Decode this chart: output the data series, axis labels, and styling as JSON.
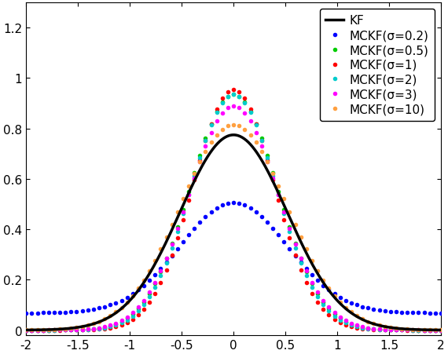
{
  "xlim": [
    -2,
    2
  ],
  "ylim": [
    -0.02,
    1.3
  ],
  "yticks": [
    0,
    0.2,
    0.4,
    0.6,
    0.8,
    1.0,
    1.2
  ],
  "xticks": [
    -2,
    -1.5,
    -1,
    -0.5,
    0,
    0.5,
    1,
    1.5,
    2
  ],
  "kf_color": "#000000",
  "kf_lw": 2.5,
  "kf_sigma": 0.515,
  "series": [
    {
      "sigma": 0.2,
      "color": "#0000FF",
      "label": "MCKF(σ=0.2)",
      "eff_sigma": 999,
      "peak": 0.505,
      "base": 0.068,
      "base_sigma": 2.5
    },
    {
      "sigma": 0.5,
      "color": "#00CC00",
      "label": "MCKF(σ=0.5)",
      "eff_sigma": 0.42,
      "peak": 0.935,
      "base": 0.0,
      "base_sigma": 0.0
    },
    {
      "sigma": 1.0,
      "color": "#FF0000",
      "label": "MCKF(σ=1)",
      "eff_sigma": 0.39,
      "peak": 0.955,
      "base": 0.0,
      "base_sigma": 0.0
    },
    {
      "sigma": 2.0,
      "color": "#00CCCC",
      "label": "MCKF(σ=2)",
      "eff_sigma": 0.41,
      "peak": 0.935,
      "base": 0.0,
      "base_sigma": 0.0
    },
    {
      "sigma": 3.0,
      "color": "#FF00FF",
      "label": "MCKF(σ=3)",
      "eff_sigma": 0.43,
      "peak": 0.89,
      "base": 0.0,
      "base_sigma": 0.0
    },
    {
      "sigma": 10.0,
      "color": "#FFA040",
      "label": "MCKF(σ=10)",
      "eff_sigma": 0.515,
      "peak": 0.815,
      "base": 0.0,
      "base_sigma": 0.0
    }
  ],
  "n_dots": 75,
  "dot_size": 4.0,
  "legend_fontsize": 11,
  "tick_fontsize": 11
}
